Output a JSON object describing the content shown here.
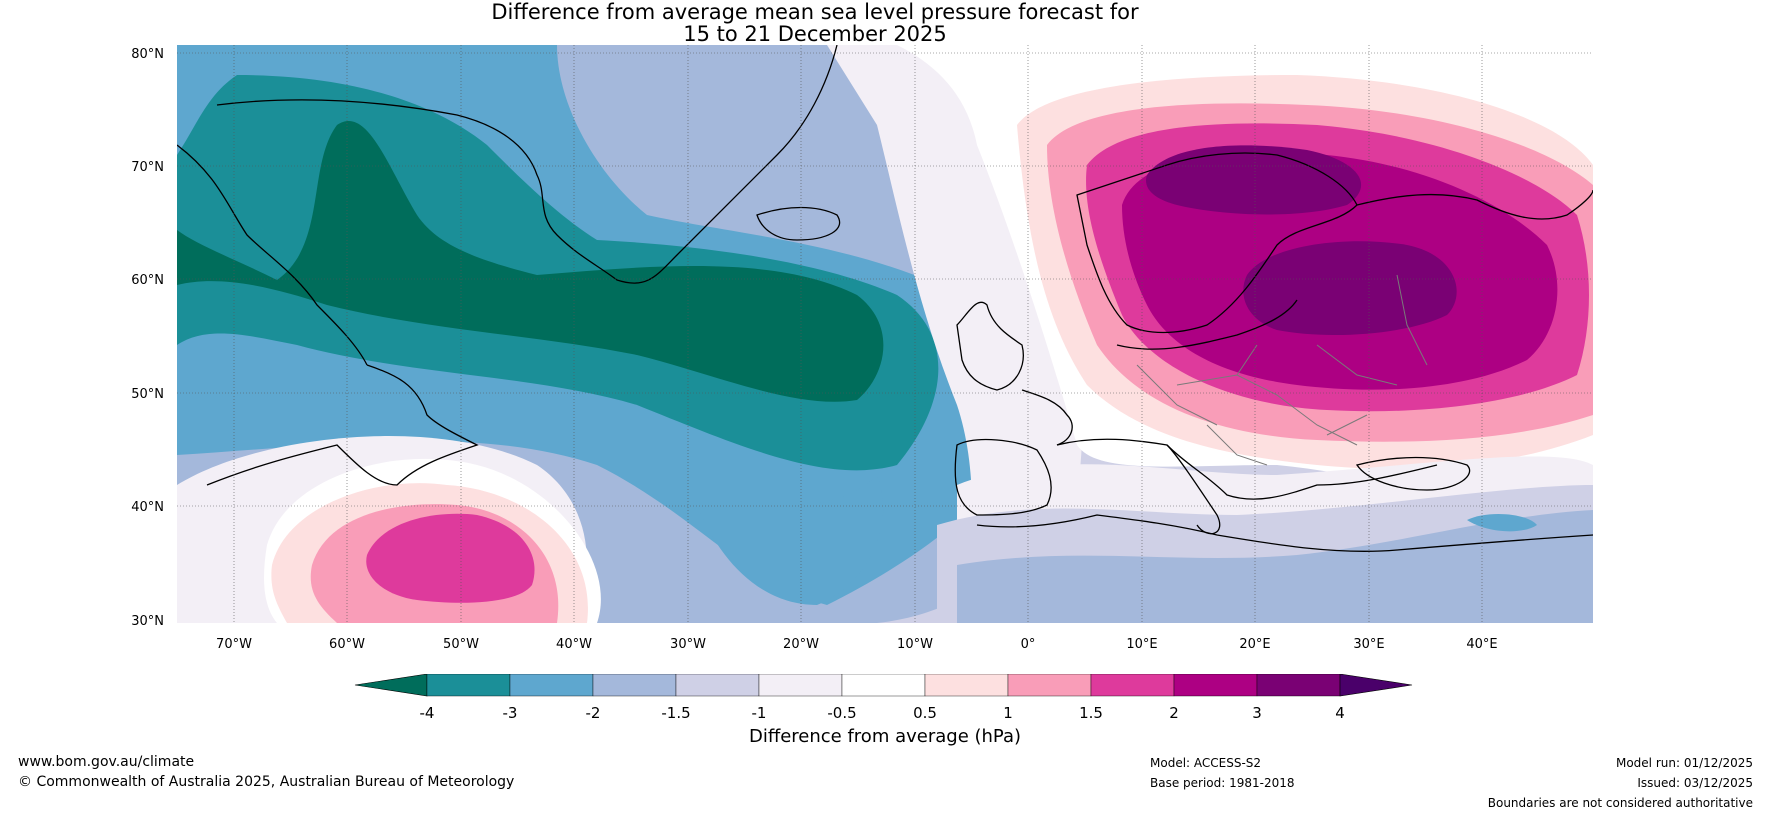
{
  "title": {
    "line1": "Difference from average mean sea level pressure forecast for",
    "line2": "15 to 21 December 2025"
  },
  "lat_labels": [
    "80°N",
    "70°N",
    "60°N",
    "50°N",
    "40°N",
    "30°N"
  ],
  "lon_labels": [
    "70°W",
    "60°W",
    "50°W",
    "40°W",
    "30°W",
    "20°W",
    "10°W",
    "0°",
    "10°E",
    "20°E",
    "30°E",
    "40°E"
  ],
  "colorbar": {
    "ticks": [
      "-4",
      "-3",
      "-2",
      "-1.5",
      "-1",
      "-0.5",
      "0.5",
      "1",
      "1.5",
      "2",
      "3",
      "4"
    ],
    "colors": [
      "#006d5b",
      "#1b8f98",
      "#5ea7cf",
      "#a4b8db",
      "#cfd0e6",
      "#f3eff6",
      "#ffffff",
      "#fde0e0",
      "#f99db8",
      "#de3a9c",
      "#ad0083",
      "#7a0174"
    ],
    "extend_low_color": "#006d5b",
    "extend_high_color": "#4a006a",
    "label": "Difference from average (hPa)"
  },
  "footer": {
    "url": "www.bom.gov.au/climate",
    "copyright": "© Commonwealth of Australia 2025, Australian Bureau of Meteorology",
    "model": "Model: ACCESS-S2",
    "base_period": "Base period: 1981-2018",
    "model_run": "Model run: 01/12/2025",
    "issued": "Issued: 03/12/2025",
    "disclaimer": "Boundaries are not considered authoritative"
  }
}
